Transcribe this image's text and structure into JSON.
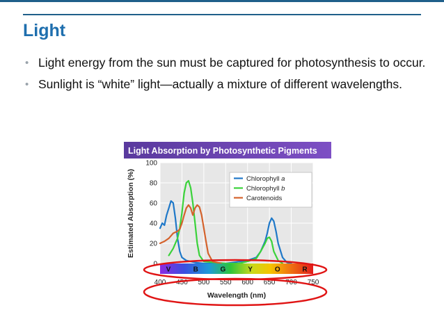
{
  "slide": {
    "title": "Light",
    "bullets": [
      "Light energy from the sun must be captured for photosynthesis to occur.",
      "Sunlight is “white” light—actually a mixture of different wavelengths."
    ]
  },
  "chart_data": {
    "type": "line",
    "title": "Light Absorption by Photosynthetic Pigments",
    "xlabel": "Wavelength (nm)",
    "ylabel": "Estimated Absorption (%)",
    "xlim": [
      400,
      750
    ],
    "ylim": [
      0,
      100
    ],
    "x_ticks": [
      400,
      450,
      500,
      550,
      600,
      650,
      700,
      750
    ],
    "y_ticks": [
      0,
      20,
      40,
      60,
      80,
      100
    ],
    "grid": true,
    "legend_position": "top-right",
    "spectrum_bands": [
      "V",
      "B",
      "G",
      "Y",
      "O",
      "R"
    ],
    "series": [
      {
        "name": "Chlorophyll a",
        "color": "#1f78c8",
        "name_parts": [
          "Chlorophyll ",
          "a"
        ],
        "points": [
          [
            400,
            35
          ],
          [
            405,
            40
          ],
          [
            410,
            38
          ],
          [
            415,
            48
          ],
          [
            420,
            55
          ],
          [
            425,
            62
          ],
          [
            430,
            60
          ],
          [
            435,
            45
          ],
          [
            440,
            25
          ],
          [
            445,
            12
          ],
          [
            450,
            6
          ],
          [
            460,
            3
          ],
          [
            480,
            1
          ],
          [
            500,
            0
          ],
          [
            550,
            0
          ],
          [
            600,
            3
          ],
          [
            620,
            6
          ],
          [
            630,
            12
          ],
          [
            640,
            22
          ],
          [
            645,
            30
          ],
          [
            650,
            40
          ],
          [
            655,
            45
          ],
          [
            660,
            42
          ],
          [
            665,
            32
          ],
          [
            670,
            20
          ],
          [
            680,
            6
          ],
          [
            690,
            1
          ],
          [
            700,
            0
          ]
        ]
      },
      {
        "name": "Chlorophyll b",
        "color": "#3ad23a",
        "name_parts": [
          "Chlorophyll ",
          "b"
        ],
        "points": [
          [
            420,
            8
          ],
          [
            430,
            15
          ],
          [
            440,
            25
          ],
          [
            445,
            35
          ],
          [
            450,
            50
          ],
          [
            455,
            70
          ],
          [
            460,
            80
          ],
          [
            465,
            82
          ],
          [
            470,
            75
          ],
          [
            475,
            60
          ],
          [
            480,
            40
          ],
          [
            485,
            20
          ],
          [
            490,
            8
          ],
          [
            500,
            2
          ],
          [
            550,
            0
          ],
          [
            580,
            0
          ],
          [
            600,
            2
          ],
          [
            620,
            5
          ],
          [
            630,
            12
          ],
          [
            640,
            20
          ],
          [
            645,
            25
          ],
          [
            650,
            26
          ],
          [
            655,
            22
          ],
          [
            660,
            12
          ],
          [
            670,
            3
          ],
          [
            680,
            0
          ]
        ]
      },
      {
        "name": "Carotenoids",
        "color": "#d4622c",
        "name_parts": [
          "Carotenoids",
          ""
        ],
        "points": [
          [
            400,
            20
          ],
          [
            410,
            22
          ],
          [
            420,
            25
          ],
          [
            430,
            30
          ],
          [
            440,
            32
          ],
          [
            445,
            34
          ],
          [
            450,
            40
          ],
          [
            455,
            48
          ],
          [
            460,
            55
          ],
          [
            465,
            58
          ],
          [
            470,
            55
          ],
          [
            475,
            48
          ],
          [
            480,
            55
          ],
          [
            485,
            58
          ],
          [
            490,
            56
          ],
          [
            495,
            48
          ],
          [
            500,
            35
          ],
          [
            505,
            22
          ],
          [
            510,
            10
          ],
          [
            520,
            2
          ],
          [
            540,
            0
          ]
        ]
      }
    ]
  }
}
